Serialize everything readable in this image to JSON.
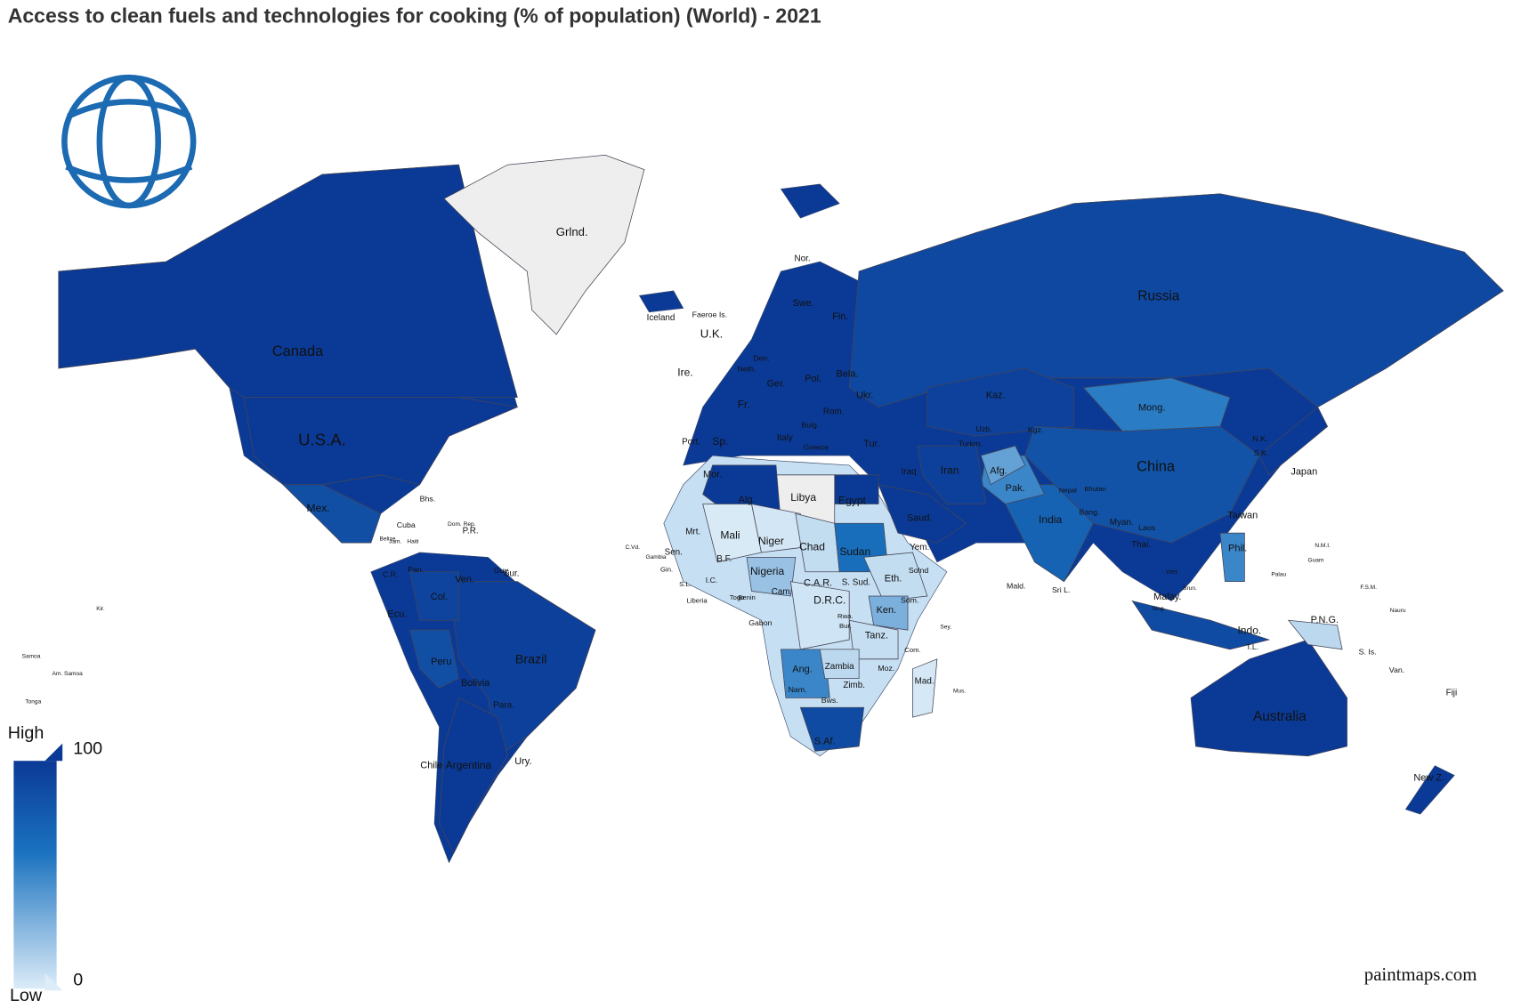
{
  "title": "Access to clean fuels and technologies for cooking (% of population) (World) - 2021",
  "credit": "paintmaps.com",
  "legend": {
    "high": "High",
    "low": "Low",
    "max": 100,
    "min": 0
  },
  "colors": {
    "low": "#dcecf8",
    "mid": "#1a72bf",
    "high": "#0b3a96",
    "no_data": "#eeeeee"
  },
  "countries": [
    {
      "label": "Canada",
      "value": 100
    },
    {
      "label": "U.S.A.",
      "value": 100
    },
    {
      "label": "Mex.",
      "value": 85
    },
    {
      "label": "Grlnd.",
      "value": null
    },
    {
      "label": "Brazil",
      "value": 96
    },
    {
      "label": "Argentina",
      "value": 100
    },
    {
      "label": "Peru",
      "value": 85
    },
    {
      "label": "Col.",
      "value": 93
    },
    {
      "label": "Russia",
      "value": 90
    },
    {
      "label": "Kaz.",
      "value": 95
    },
    {
      "label": "Mong.",
      "value": 55
    },
    {
      "label": "China",
      "value": 82
    },
    {
      "label": "India",
      "value": 71
    },
    {
      "label": "Pak.",
      "value": 50
    },
    {
      "label": "Afg.",
      "value": 37
    },
    {
      "label": "Iran",
      "value": 96
    },
    {
      "label": "Saud.",
      "value": 100
    },
    {
      "label": "Egypt",
      "value": 100
    },
    {
      "label": "Libya",
      "value": null
    },
    {
      "label": "Alg.",
      "value": 100
    },
    {
      "label": "Mali",
      "value": 1
    },
    {
      "label": "Niger",
      "value": 3
    },
    {
      "label": "Chad",
      "value": 8
    },
    {
      "label": "Sudan",
      "value": 63
    },
    {
      "label": "Nigeria",
      "value": 21
    },
    {
      "label": "Eth.",
      "value": 8
    },
    {
      "label": "D.R.C.",
      "value": 4
    },
    {
      "label": "Ken.",
      "value": 30
    },
    {
      "label": "Tanz.",
      "value": 7
    },
    {
      "label": "Ang.",
      "value": 50
    },
    {
      "label": "Zambia",
      "value": 10
    },
    {
      "label": "S.Af.",
      "value": 88
    },
    {
      "label": "Mad.",
      "value": 2
    },
    {
      "label": "Australia",
      "value": 100
    },
    {
      "label": "Indo.",
      "value": 88
    },
    {
      "label": "Japan",
      "value": 100
    },
    {
      "label": "Phil.",
      "value": 50
    },
    {
      "label": "P.N.G.",
      "value": 10
    }
  ],
  "labels": [
    "Nor.",
    "Swe.",
    "Fin.",
    "Iceland",
    "Faeroe Is.",
    "U.K.",
    "Ire.",
    "Fr.",
    "Sp.",
    "Port.",
    "Italy",
    "Ger.",
    "Pol.",
    "Ukr.",
    "Bela.",
    "Rom.",
    "Tur.",
    "Iraq",
    "Uzb.",
    "Turkm.",
    "Kgz.",
    "Nepal",
    "Bhutan",
    "Bang.",
    "Myan.",
    "Thai.",
    "Laos",
    "Viet.",
    "Malay.",
    "N.K.",
    "S.K.",
    "Taiwan",
    "Sri L.",
    "Yem.",
    "Mor.",
    "Mrt.",
    "Sen.",
    "B.F.",
    "I.C.",
    "Cam.",
    "C.A.R.",
    "S. Sud.",
    "Gabon",
    "Som.",
    "Zimb.",
    "Bws.",
    "Nam.",
    "Moz.",
    "Ven.",
    "Ecu.",
    "Bolivia",
    "Para.",
    "Chile",
    "Ury.",
    "Sur.",
    "Guy.",
    "Cuba",
    "Bhs.",
    "Jam.",
    "Haiti",
    "P.R.",
    "Pan.",
    "C.R.",
    "Fiji",
    "New Z.",
    "Van.",
    "S. Is.",
    "T.L.",
    "Samoa",
    "Am. Samoa",
    "Tonga",
    "Kir.",
    "Mald.",
    "Com.",
    "Mus.",
    "Sey.",
    "Palau",
    "N.M.I.",
    "Guam",
    "F.S.M.",
    "Nauru",
    "C.Vd.",
    "Gambia",
    "Liberia",
    "S.L.",
    "Togo",
    "Benin",
    "Gin.",
    "Rwa.",
    "Bur.",
    "Greece",
    "Bulg.",
    "Dom. Rep.",
    "Belize",
    "Solnd",
    "Brun.",
    "Sing.",
    "Den.",
    "Neth."
  ]
}
